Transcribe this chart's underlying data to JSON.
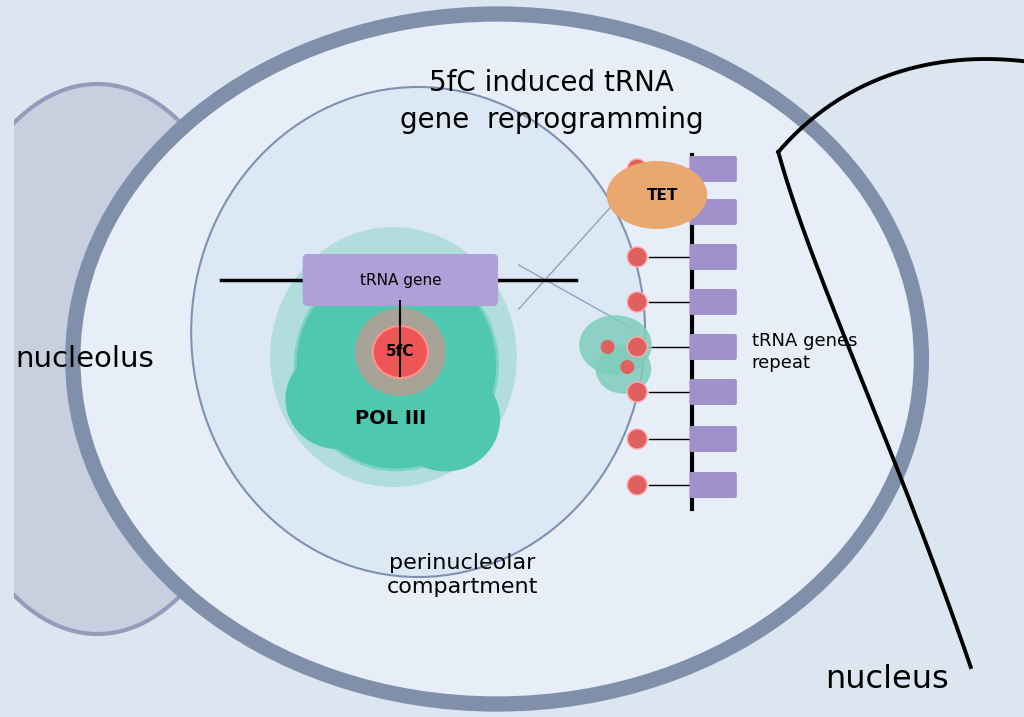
{
  "bg_color": "#dce6f0",
  "nucleus_bg": "#e8eef8",
  "nucleus_border": "#8090aa",
  "nucleolus_color": "#c8d0e0",
  "nucleolus_border": "#9999bb",
  "pnc_bg": "#dde8f5",
  "pnc_border": "#8090b0",
  "pol3_outer_color": "#7dd4c0",
  "pol3_inner_color": "#50c8b0",
  "fivefc_glow": "#ff8080",
  "fivefc_core": "#ee5555",
  "trna_gene_box": "#b0a0d8",
  "tet_color": "#e8a870",
  "small_trna_color": "#80ccbb",
  "repeat_box_color": "#a090cc",
  "dot_color": "#e06060",
  "title_text": "5fC induced tRNA\ngene  reprogramming",
  "label_nucleolus": "nucleolus",
  "label_nucleus": "nucleus",
  "label_pnc": "perinucleolar\ncompartment",
  "label_poliii": "POL III",
  "label_5fc": "5fC",
  "label_trna_gene": "tRNA gene",
  "label_tet": "TET",
  "label_repeat": "tRNA genes\nrepeat"
}
